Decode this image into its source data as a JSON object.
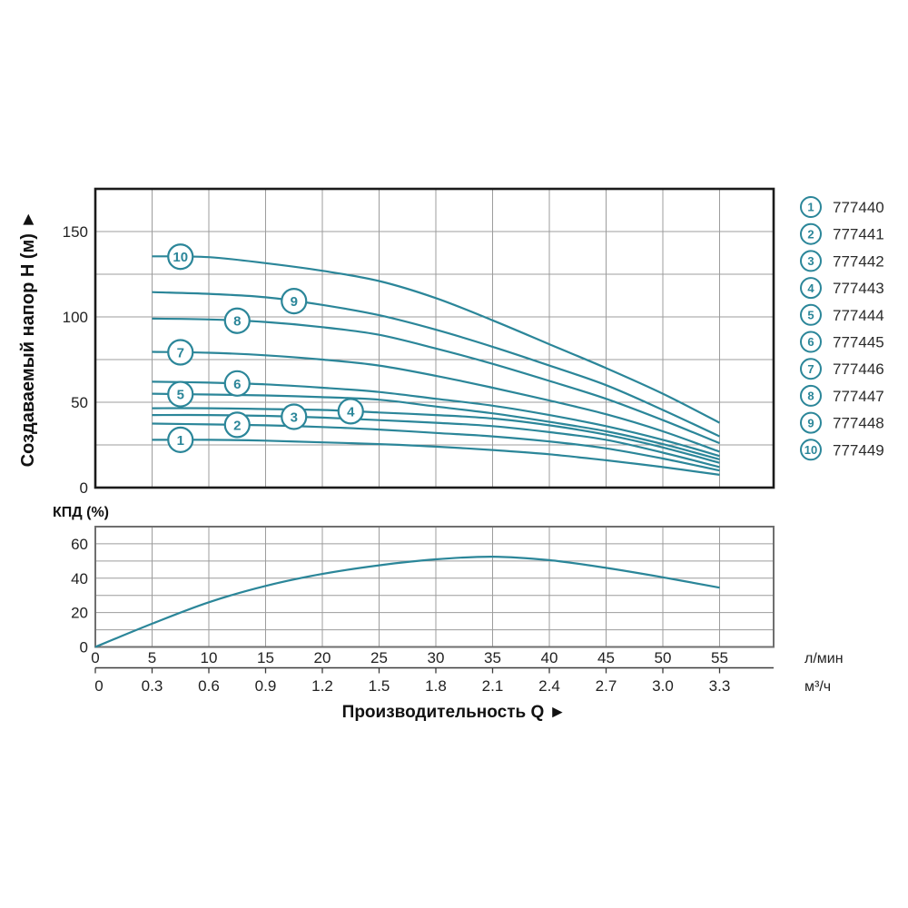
{
  "labels": {
    "head_y_title": "Создаваемый напор H (м) ►",
    "eff_y_title": "КПД (%)",
    "x_title": "Производительность Q ►",
    "x_unit_primary": "л/мин",
    "x_unit_secondary": "м³/ч"
  },
  "colors": {
    "curve": "#2b8699",
    "grid": "#9c9c9c",
    "head_border": "#1b1b1b",
    "eff_border": "#6f6f6f",
    "ruler": "#3c3c3c",
    "title_text": "#111111",
    "tick_text": "#222222",
    "legend_text": "#2b2b2b"
  },
  "chart_data": [
    {
      "type": "line",
      "title": "Pump head vs flow (H–Q) curves",
      "ylabel": "Создаваемый напор H (м)",
      "xlabel": "Производительность Q",
      "x_unit": "л/мин",
      "ylim": [
        0,
        175
      ],
      "xlim": [
        0,
        59.8
      ],
      "y_ticks": [
        0,
        50,
        100,
        150
      ],
      "y_grid_step": 25,
      "x_grid_ticks": [
        5,
        10,
        15,
        20,
        25,
        30,
        35,
        40,
        45,
        50,
        55
      ],
      "grid": true,
      "legend_position": "right-outside",
      "x": [
        5,
        10,
        15,
        20,
        25,
        30,
        35,
        40,
        45,
        50,
        55
      ],
      "series": [
        {
          "badge": "1",
          "name": "777440",
          "badge_q": 7.5,
          "values": [
            28,
            28,
            27.5,
            26.5,
            25.5,
            24,
            22,
            19.5,
            16,
            12,
            7.5
          ]
        },
        {
          "badge": "2",
          "name": "777441",
          "badge_q": 12.5,
          "values": [
            37.5,
            37,
            36.5,
            35.5,
            34,
            32,
            30,
            27,
            23,
            17,
            10
          ]
        },
        {
          "badge": "3",
          "name": "777442",
          "badge_q": 17.5,
          "values": [
            42.5,
            42.5,
            42,
            41,
            39.5,
            38,
            36,
            32.5,
            28,
            20.5,
            12
          ]
        },
        {
          "badge": "4",
          "name": "777443",
          "badge_q": 22.5,
          "values": [
            46.5,
            46.5,
            46,
            45.5,
            44,
            42.5,
            40.5,
            36.5,
            31,
            23.5,
            14.5
          ]
        },
        {
          "badge": "5",
          "name": "777444",
          "badge_q": 7.5,
          "values": [
            55,
            54.5,
            54,
            53,
            51.5,
            47.5,
            43.5,
            38.5,
            33,
            25.5,
            16.5
          ]
        },
        {
          "badge": "6",
          "name": "777445",
          "badge_q": 12.5,
          "values": [
            62,
            61.5,
            60.5,
            58.5,
            56,
            52,
            48,
            42.5,
            36,
            28,
            18.5
          ]
        },
        {
          "badge": "7",
          "name": "777446",
          "badge_q": 7.5,
          "values": [
            79.5,
            79,
            77.5,
            75,
            71.5,
            65.5,
            58.5,
            51,
            43,
            33,
            21
          ]
        },
        {
          "badge": "8",
          "name": "777447",
          "badge_q": 12.5,
          "values": [
            99,
            98.5,
            97,
            94,
            89.5,
            81.5,
            72.5,
            62.5,
            52,
            39.5,
            26
          ]
        },
        {
          "badge": "9",
          "name": "777448",
          "badge_q": 17.5,
          "values": [
            114.5,
            113.5,
            111.5,
            107,
            101,
            92.5,
            82.5,
            71.5,
            60,
            45.5,
            30
          ]
        },
        {
          "badge": "10",
          "name": "777449",
          "badge_q": 7.5,
          "values": [
            135.5,
            135,
            131.5,
            127,
            121,
            111,
            98,
            84,
            70,
            55,
            38
          ]
        }
      ]
    },
    {
      "type": "line",
      "title": "Efficiency curve",
      "ylabel": "КПД (%)",
      "xlabel": "Производительность Q",
      "ylim": [
        0,
        70
      ],
      "y_ticks": [
        0,
        20,
        40,
        60
      ],
      "y_grid_step": 10,
      "grid": true,
      "x": [
        0,
        5,
        10,
        15,
        20,
        25,
        30,
        35,
        40,
        45,
        50,
        55
      ],
      "values": [
        0,
        13.5,
        26,
        35.5,
        42.5,
        47.5,
        51,
        52.5,
        50.5,
        46,
        40.5,
        34.5
      ]
    }
  ],
  "x_axis": {
    "lmin_ticks": [
      "0",
      "5",
      "10",
      "15",
      "20",
      "25",
      "30",
      "35",
      "40",
      "45",
      "50",
      "55"
    ],
    "m3h_ticks": [
      "0",
      "0.3",
      "0.6",
      "0.9",
      "1.2",
      "1.5",
      "1.8",
      "2.1",
      "2.4",
      "2.7",
      "3.0",
      "3.3"
    ]
  },
  "legend": [
    {
      "num": "1",
      "model": "777440"
    },
    {
      "num": "2",
      "model": "777441"
    },
    {
      "num": "3",
      "model": "777442"
    },
    {
      "num": "4",
      "model": "777443"
    },
    {
      "num": "5",
      "model": "777444"
    },
    {
      "num": "6",
      "model": "777445"
    },
    {
      "num": "7",
      "model": "777446"
    },
    {
      "num": "8",
      "model": "777447"
    },
    {
      "num": "9",
      "model": "777448"
    },
    {
      "num": "10",
      "model": "777449"
    }
  ]
}
